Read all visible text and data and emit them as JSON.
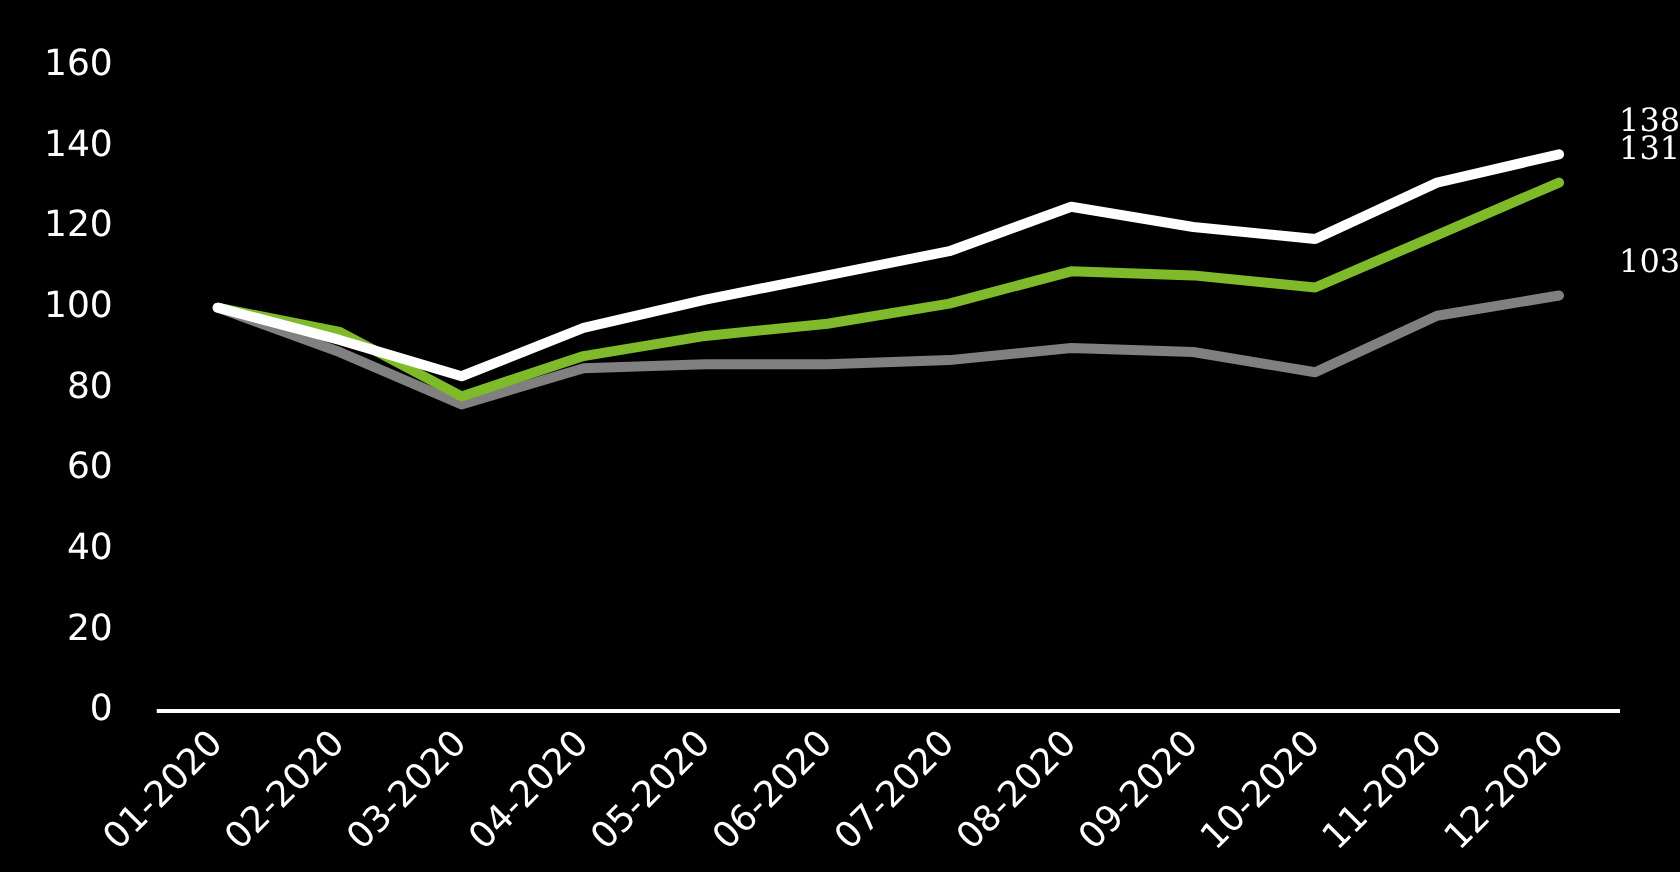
{
  "chart_data": {
    "type": "line",
    "categories": [
      "01-2020",
      "02-2020",
      "03-2020",
      "04-2020",
      "05-2020",
      "06-2020",
      "07-2020",
      "08-2020",
      "09-2020",
      "10-2020",
      "11-2020",
      "12-2020"
    ],
    "series": [
      {
        "color": "#ffffff",
        "values": [
          100,
          92,
          83,
          95,
          102,
          108,
          114,
          125,
          120,
          117,
          131,
          138
        ],
        "value_labels": [
          null,
          null,
          null,
          null,
          null,
          null,
          null,
          null,
          null,
          null,
          null,
          "138"
        ]
      },
      {
        "color": "#7fba2a",
        "values": [
          100,
          94,
          78,
          88,
          93,
          96,
          101,
          109,
          108,
          105,
          118,
          131
        ],
        "value_labels": [
          null,
          null,
          null,
          null,
          null,
          null,
          null,
          null,
          null,
          null,
          null,
          "131"
        ]
      },
      {
        "color": "#808080",
        "values": [
          100,
          89,
          76,
          85,
          86,
          86,
          87,
          90,
          89,
          84,
          98,
          103
        ],
        "value_labels": [
          null,
          null,
          null,
          null,
          null,
          null,
          null,
          null,
          null,
          null,
          null,
          "103"
        ]
      }
    ],
    "ylim": [
      0,
      160
    ],
    "yticks": [
      0,
      20,
      40,
      60,
      80,
      100,
      120,
      140,
      160
    ],
    "grid": false,
    "legend": false,
    "marker": "none",
    "line_style": "solid"
  }
}
